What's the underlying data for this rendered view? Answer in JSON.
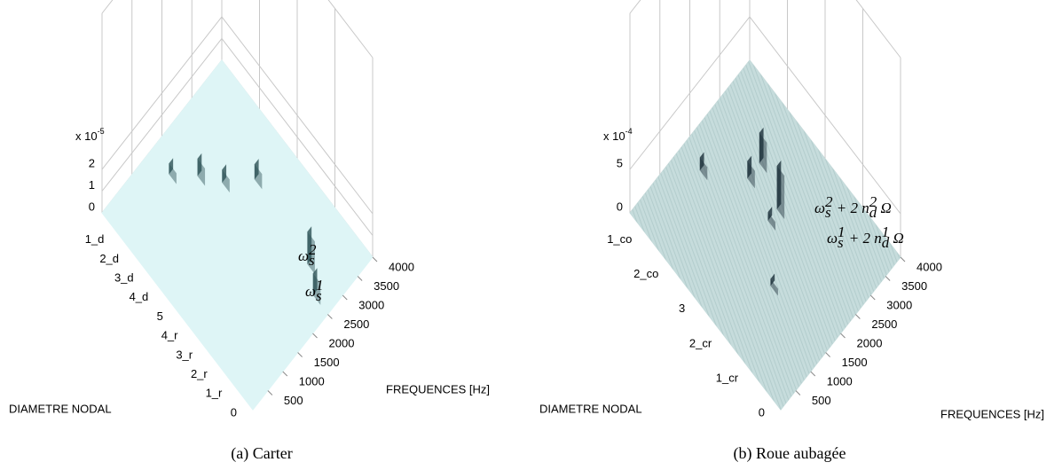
{
  "chart_data": [
    {
      "type": "surface3d",
      "caption": "(a) Carter",
      "xlabel": "FREQUENCES [Hz]",
      "ylabel": "DIAMETRE NODAL",
      "categories": [
        "1_d",
        "2_d",
        "3_d",
        "4_d",
        "5",
        "4_r",
        "3_r",
        "2_r",
        "1_r",
        "0"
      ],
      "xlim": [
        0,
        4000
      ],
      "xticks": [
        500,
        1000,
        1500,
        2000,
        2500,
        3000,
        3500,
        4000
      ],
      "zlim": [
        0,
        2
      ],
      "zticks": [
        0,
        1,
        2
      ],
      "z_multiplier": {
        "base": "x 10",
        "exponent": "-5"
      },
      "color": "#def5f6",
      "peak_color": "#2d5356",
      "points": {
        "x": [
          1700,
          2160,
          2490,
          3080,
          2875,
          2570
        ],
        "y": [
          "1_d",
          "2_d",
          "3_d",
          "4_d",
          "2_r",
          "1_r"
        ],
        "z": [
          0.5,
          0.8,
          0.6,
          0.7,
          1.5,
          1.0
        ]
      },
      "annotations": [
        {
          "segments": [
            {
              "text": "ω"
            },
            {
              "text": "s",
              "shift": "sub"
            },
            {
              "text": "2",
              "shift": "sup"
            }
          ]
        },
        {
          "segments": [
            {
              "text": "ω"
            },
            {
              "text": "s",
              "shift": "sub"
            },
            {
              "text": "1",
              "shift": "sup"
            }
          ]
        }
      ]
    },
    {
      "type": "surface3d",
      "caption": "(b) Roue aubagée",
      "xlabel": "FREQUENCES [Hz]",
      "ylabel": "DIAMETRE NODAL",
      "categories": [
        "1_co",
        "2_co",
        "3",
        "2_cr",
        "1_cr",
        "0"
      ],
      "xlim": [
        0,
        4000
      ],
      "xticks": [
        500,
        1000,
        1500,
        2000,
        2500,
        3000,
        3500,
        4000
      ],
      "zlim": [
        0,
        5
      ],
      "zticks": [
        0,
        5
      ],
      "z_multiplier": {
        "base": "x 10",
        "exponent": "-4"
      },
      "color": "#c6dcdc",
      "peak_color": "#1c2f3a",
      "points": {
        "x": [
          1800,
          2500,
          2900,
          2600,
          2300,
          1500
        ],
        "y": [
          "1_co",
          "2_co",
          "2_co",
          "3",
          "3",
          "2_cr"
        ],
        "z": [
          1.5,
          2,
          3.5,
          5,
          1,
          0.8
        ]
      },
      "annotations": [
        {
          "segments": [
            {
              "text": "ω"
            },
            {
              "text": "s",
              "shift": "sub"
            },
            {
              "text": "2",
              "shift": "sup"
            },
            {
              "text": " + 2 n"
            },
            {
              "text": "d",
              "shift": "sub"
            },
            {
              "text": "2",
              "shift": "sup"
            },
            {
              "text": " Ω"
            }
          ]
        },
        {
          "segments": [
            {
              "text": "ω"
            },
            {
              "text": "s",
              "shift": "sub"
            },
            {
              "text": "1",
              "shift": "sup"
            },
            {
              "text": " + 2 n"
            },
            {
              "text": "d",
              "shift": "sub"
            },
            {
              "text": "1",
              "shift": "sup"
            },
            {
              "text": " Ω"
            }
          ]
        }
      ]
    }
  ]
}
